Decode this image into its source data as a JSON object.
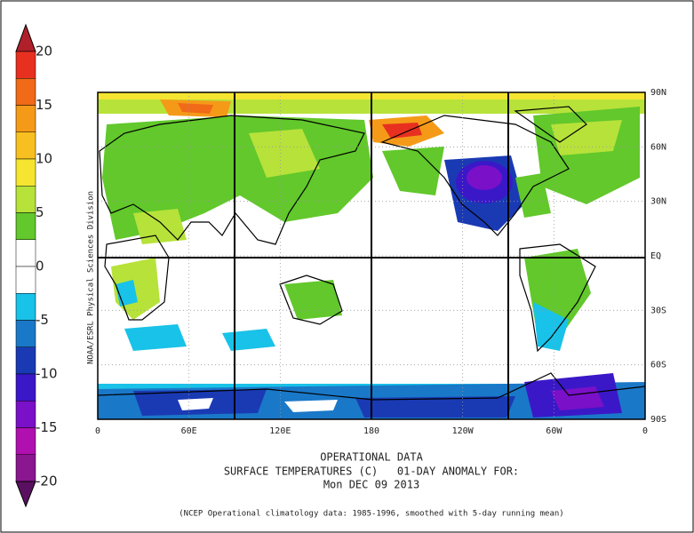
{
  "colorbar": {
    "ticks": [
      20,
      15,
      10,
      5,
      0,
      -5,
      -10,
      -15,
      -20
    ],
    "colors": [
      "#b0202a",
      "#e83020",
      "#f06a18",
      "#f59a18",
      "#f7c020",
      "#f5e530",
      "#b7e23a",
      "#62c82b",
      "#ffffff",
      "#ffffff",
      "#19c2e8",
      "#1a78c8",
      "#1a3ab4",
      "#3a18c8",
      "#7a10c8",
      "#b010b0",
      "#8a1690",
      "#5a1060"
    ]
  },
  "map": {
    "xlim": [
      0,
      360
    ],
    "ylim": [
      -90,
      90
    ],
    "xticks": [
      0,
      {
        "value": 60,
        "label": "60E"
      },
      {
        "value": 120,
        "label": "120E"
      },
      {
        "value": 180,
        "label": "180"
      },
      {
        "value": 240,
        "label": "120W"
      },
      {
        "value": 300,
        "label": "60W"
      },
      {
        "value": 360,
        "label": "0"
      }
    ],
    "yticks": [
      {
        "value": 90,
        "label": "90N"
      },
      {
        "value": 60,
        "label": "60N"
      },
      {
        "value": 30,
        "label": "30N"
      },
      {
        "value": 0,
        "label": "EQ"
      },
      {
        "value": -30,
        "label": "30S"
      },
      {
        "value": -60,
        "label": "60S"
      },
      {
        "value": -90,
        "label": "90S"
      }
    ],
    "side_label": "NOAA/ESRL Physical Sciences Division"
  },
  "caption": {
    "lines": [
      "OPERATIONAL DATA",
      "SURFACE TEMPERATURES (C)   01-DAY ANOMALY FOR:",
      "Mon DEC 09 2013"
    ],
    "note": "(NCEP Operational climatology data: 1985-1996, smoothed with 5-day running mean)"
  }
}
